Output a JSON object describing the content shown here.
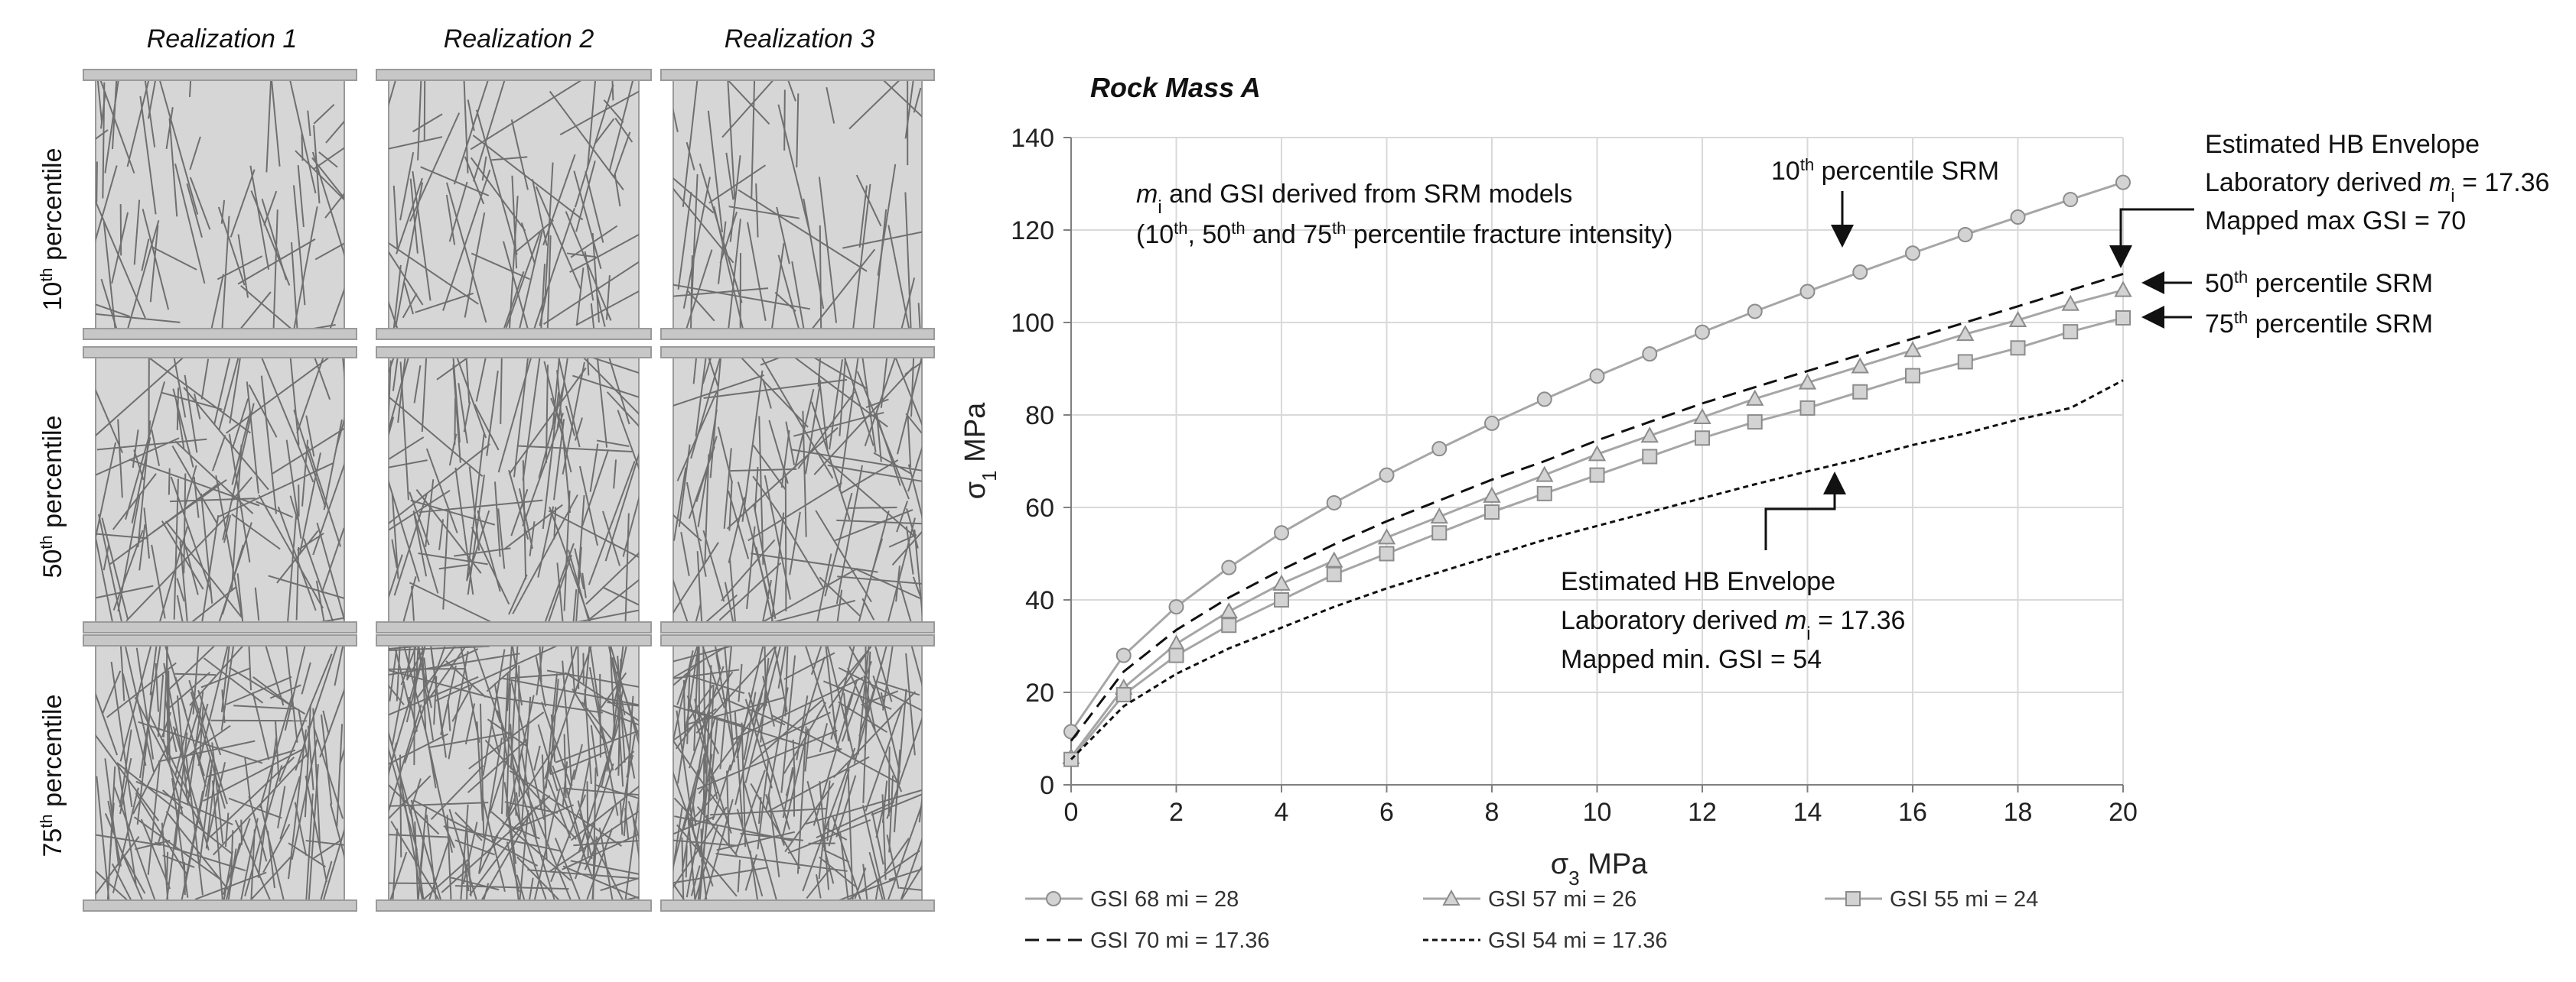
{
  "panel": {
    "column_titles": [
      "Realization  1",
      "Realization  2",
      "Realization  3"
    ],
    "row_labels": [
      {
        "base": "10",
        "sup": "th",
        "rest": " percentile"
      },
      {
        "base": "50",
        "sup": "th",
        "rest": " percentile"
      },
      {
        "base": "75",
        "sup": "th",
        "rest": " percentile"
      }
    ],
    "fracture_color": "#6f6f6f",
    "sample_fill": "#d6d6d6",
    "platen_fill": "#c7c7c7"
  },
  "chart_data": {
    "type": "line",
    "title": "Rock Mass A",
    "xlabel": {
      "symbol": "σ",
      "sub": "3",
      "rest": " MPa"
    },
    "ylabel": {
      "symbol": "σ",
      "sub": "1",
      "rest": " MPa"
    },
    "xlim": [
      0,
      20
    ],
    "ylim": [
      0,
      140
    ],
    "xticks": [
      0,
      2,
      4,
      6,
      8,
      10,
      12,
      14,
      16,
      18,
      20
    ],
    "yticks": [
      0,
      20,
      40,
      60,
      80,
      100,
      120,
      140
    ],
    "grid": true,
    "legend_position": "bottom",
    "x": [
      0,
      1,
      2,
      3,
      4,
      5,
      6,
      7,
      8,
      9,
      10,
      11,
      12,
      13,
      14,
      15,
      16,
      17,
      18,
      19,
      20
    ],
    "series": [
      {
        "name": "GSI 68 mi = 28",
        "marker": "circle",
        "dash": "solid",
        "color": "#a6a6a6",
        "values": [
          11.5,
          28,
          38.5,
          47,
          54.5,
          61,
          67,
          72.7,
          78.2,
          83.4,
          88.4,
          93.2,
          97.9,
          102.4,
          106.7,
          110.9,
          115,
          119,
          122.8,
          126.6,
          130.3
        ]
      },
      {
        "name": "GSI 57 mi = 26",
        "marker": "triangle",
        "dash": "solid",
        "color": "#a6a6a6",
        "values": [
          6,
          21,
          30.5,
          37.5,
          43.5,
          48.5,
          53.5,
          58,
          62.5,
          67,
          71.5,
          75.5,
          79.5,
          83.5,
          87,
          90.5,
          94,
          97.5,
          100.5,
          104,
          107
        ]
      },
      {
        "name": "GSI 55 mi = 24",
        "marker": "square",
        "dash": "solid",
        "color": "#a6a6a6",
        "values": [
          5.5,
          19.5,
          28,
          34.5,
          40,
          45.5,
          50,
          54.5,
          59,
          63,
          67,
          71,
          75,
          78.5,
          81.5,
          85,
          88.5,
          91.5,
          94.5,
          98,
          101
        ]
      },
      {
        "name": "GSI 70 mi = 17.36",
        "marker": "none",
        "dash": "long",
        "color": "#111111",
        "values": [
          9.5,
          24.5,
          33.5,
          40.5,
          46.5,
          52,
          57,
          61.5,
          66,
          70,
          74.5,
          78.5,
          82.5,
          86,
          89.5,
          93,
          96.5,
          100,
          103.5,
          107,
          110.5
        ]
      },
      {
        "name": "GSI 54 mi = 17.36",
        "marker": "none",
        "dash": "short",
        "color": "#111111",
        "values": [
          5.5,
          17,
          24,
          29.5,
          34,
          38.5,
          42.5,
          46,
          49.5,
          53,
          56,
          59,
          62,
          65,
          67.8,
          70.5,
          73.5,
          76,
          79,
          81.5,
          87.5
        ]
      }
    ],
    "annotations": {
      "srm_note_line1": {
        "italic": "m",
        "sub": "i",
        "rest": " and  GSI derived  from SRM models"
      },
      "srm_note_line2": {
        "pre": "(10",
        "s1": "th",
        "mid1": ", 50",
        "s2": "th",
        "mid2": " and 75",
        "s3": "th",
        "post": " percentile  fracture  intensity)"
      },
      "p10_label": {
        "base": "10",
        "sup": "th",
        "rest": " percentile  SRM"
      },
      "p50_label": {
        "base": "50",
        "sup": "th",
        "rest": " percentile  SRM"
      },
      "p75_label": {
        "base": "75",
        "sup": "th",
        "rest": " percentile  SRM"
      },
      "upper_envelope": {
        "line1": "Estimated  HB Envelope",
        "line2_pre": "Laboratory derived  ",
        "line2_italic": "m",
        "line2_sub": "i",
        "line2_post": " = 17.36",
        "line3": "Mapped max GSI = 70"
      },
      "lower_envelope": {
        "line1": "Estimated  HB Envelope",
        "line2_pre": "Laboratory derived  ",
        "line2_italic": "m",
        "line2_sub": "i",
        "line2_post": " = 17.36",
        "line3": "Mapped min. GSI = 54"
      }
    }
  }
}
